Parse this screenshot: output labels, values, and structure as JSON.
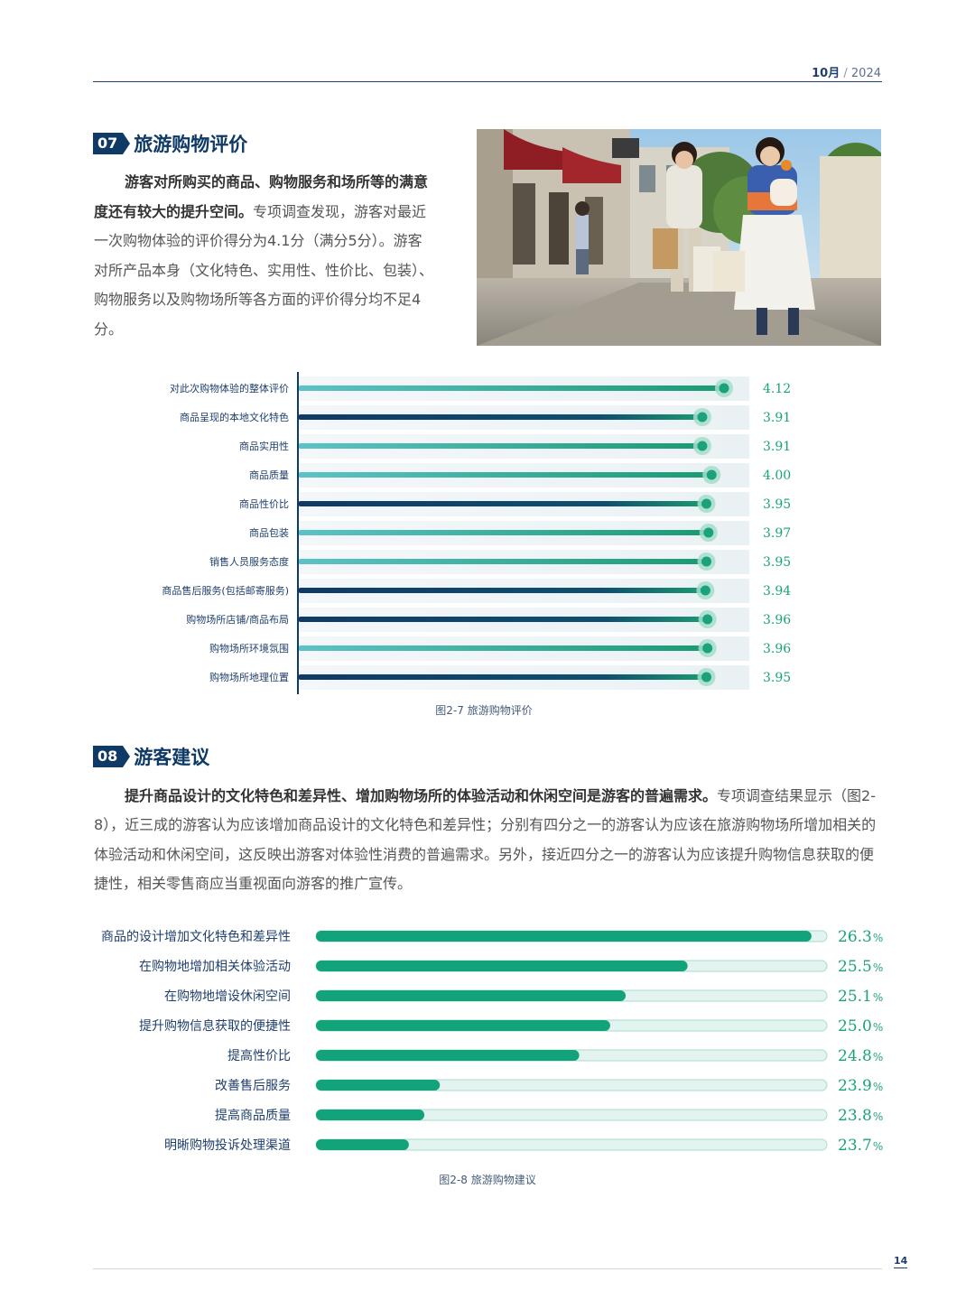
{
  "header": {
    "month": "10月",
    "sep": "/",
    "year": "2024"
  },
  "section1": {
    "number": "07",
    "title": "旅游购物评价",
    "para_bold": "游客对所购买的商品、购物服务和场所等的满意度还有较大的提升空间。",
    "para_rest": "专项调查发现，游客对最近一次购物体验的评价得分为4.1分（满分5分）。游客对所产品本身（文化特色、实用性、性价比、包装）、购物服务以及购物场所等各方面的评价得分均不足4分。"
  },
  "photo": {
    "description_icon": "photo-shopping-tourists"
  },
  "chart_data": [
    {
      "type": "bar",
      "orientation": "horizontal",
      "caption": "图2-7 旅游购物评价",
      "categories": [
        "对此次购物体验的整体评价",
        "商品呈现的本地文化特色",
        "商品实用性",
        "商品质量",
        "商品性价比",
        "商品包装",
        "销售人员服务态度",
        "商品售后服务(包括邮寄服务)",
        "购物场所店铺/商品布局",
        "购物场所环境氛围",
        "购物场所地理位置"
      ],
      "values": [
        4.12,
        3.91,
        3.91,
        4.0,
        3.95,
        3.97,
        3.95,
        3.94,
        3.96,
        3.96,
        3.95
      ],
      "value_labels": [
        "4.12",
        "3.91",
        "3.91",
        "4.00",
        "3.95",
        "3.97",
        "3.95",
        "3.94",
        "3.96",
        "3.96",
        "3.95"
      ],
      "styles": [
        "teal",
        "navy",
        "teal",
        "teal",
        "navy",
        "teal",
        "teal",
        "navy",
        "navy",
        "teal",
        "navy"
      ],
      "colors": {
        "teal_start": "#5cc3c6",
        "teal_end": "#1a9b73",
        "navy_start": "#0f3a66",
        "navy_end": "#1a9b73",
        "marker": "#1aa27c",
        "halo": "#a6ddc9",
        "label": "#1aa27c",
        "row_band": "#eaf1f4"
      }
    },
    {
      "type": "bar",
      "orientation": "horizontal",
      "caption": "图2-8 旅游购物建议",
      "categories": [
        "商品的设计增加文化特色和差异性",
        "在购物地增加相关体验活动",
        "在购物地增设休闲空间",
        "提升购物信息获取的便捷性",
        "提高性价比",
        "改善售后服务",
        "提高商品质量",
        "明晰购物投诉处理渠道"
      ],
      "values": [
        26.3,
        25.5,
        25.1,
        25.0,
        24.8,
        23.9,
        23.8,
        23.7
      ],
      "value_labels": [
        "26.3",
        "25.5",
        "25.1",
        "25.0",
        "24.8",
        "23.9",
        "23.8",
        "23.7"
      ],
      "unit": "%",
      "colors": {
        "fill": "#12a37a",
        "track": "#e2f3f0",
        "track_border": "#a9dccf",
        "label": "#1aa27c"
      }
    }
  ],
  "section2": {
    "number": "08",
    "title": "游客建议",
    "para_bold": "提升商品设计的文化特色和差异性、增加购物场所的体验活动和休闲空间是游客的普遍需求。",
    "para_rest": "专项调查结果显示（图2-8），近三成的游客认为应该增加商品设计的文化特色和差异性；分别有四分之一的游客认为应该在旅游购物场所增加相关的体验活动和休闲空间，这反映出游客对体验性消费的普遍需求。另外，接近四分之一的游客认为应该提升购物信息获取的便捷性，相关零售商应当重视面向游客的推广宣传。"
  },
  "footer": {
    "page": "14"
  }
}
